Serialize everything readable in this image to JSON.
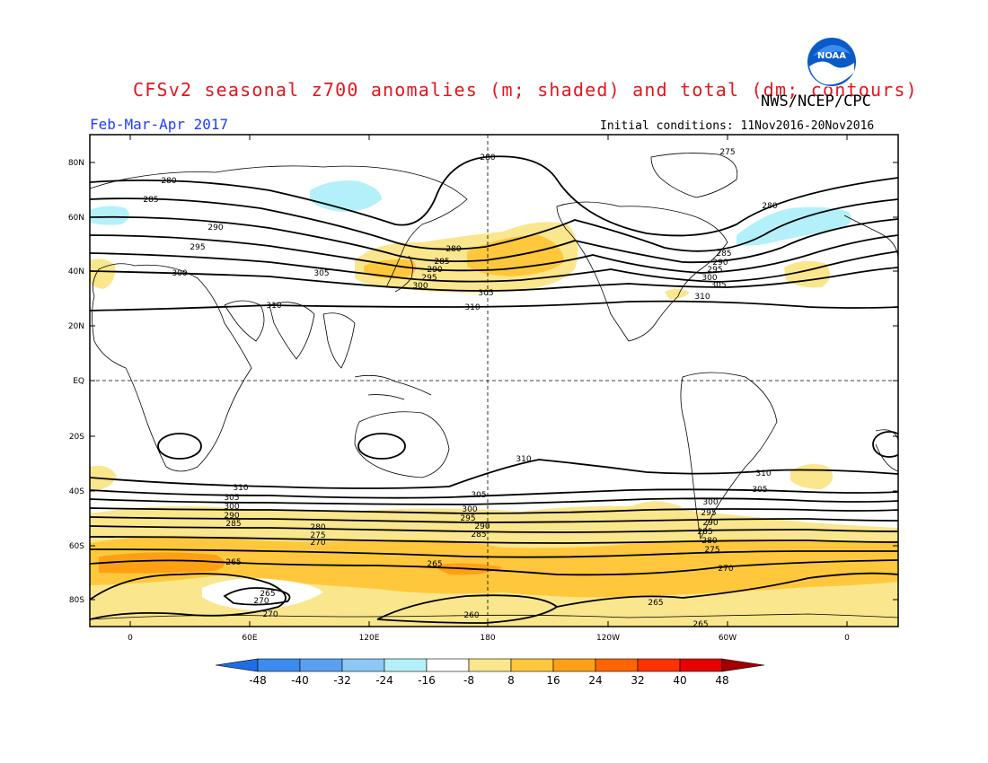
{
  "title": "CFSv2 seasonal z700 anomalies (m; shaded) and total (dm; contours)",
  "org": "NWS/NCEP/CPC",
  "logo_text": "NOAA",
  "season": "Feb-Mar-Apr 2017",
  "initial_conditions": "Initial conditions: 11Nov2016-20Nov2016",
  "lat_labels": [
    "80N",
    "60N",
    "40N",
    "20N",
    "EQ",
    "20S",
    "40S",
    "60S",
    "80S"
  ],
  "lon_labels": [
    "0",
    "60E",
    "120E",
    "180",
    "120W",
    "60W",
    "0"
  ],
  "colorbar": {
    "labels": [
      "-48",
      "-40",
      "-32",
      "-24",
      "-16",
      "-8",
      "8",
      "16",
      "24",
      "32",
      "40",
      "48"
    ],
    "colors": [
      "#1e6ee6",
      "#3c8cf0",
      "#5aa0f0",
      "#8cc8f5",
      "#b4f0fa",
      "#ffffff",
      "#fae68c",
      "#ffc83c",
      "#ffa014",
      "#ff6400",
      "#ff3200",
      "#e60000",
      "#a00000"
    ]
  },
  "contour_labels": [
    "280",
    "285",
    "290",
    "295",
    "300",
    "305",
    "310",
    "275",
    "270",
    "265",
    "260"
  ]
}
